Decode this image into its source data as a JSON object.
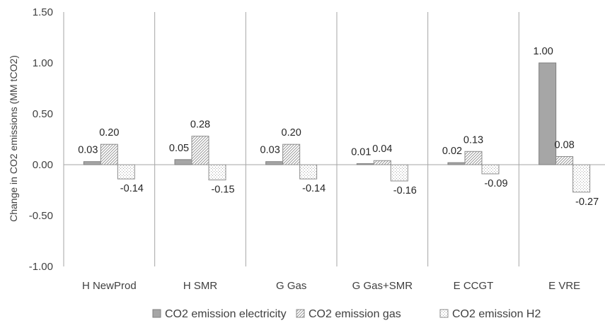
{
  "chart_data": {
    "type": "bar",
    "title": "",
    "xlabel": "",
    "ylabel": "Change in CO2 emissions  (MM tCO2)",
    "ylim": [
      -1.0,
      1.5
    ],
    "yticks": [
      "1.50",
      "1.00",
      "0.50",
      "0.00",
      "-0.50",
      "-1.00"
    ],
    "ytick_values": [
      1.5,
      1.0,
      0.5,
      0.0,
      -0.5,
      -1.0
    ],
    "categories": [
      "H NewProd",
      "H SMR",
      "G Gas",
      "G Gas+SMR",
      "E CCGT",
      "E VRE"
    ],
    "series": [
      {
        "name": "CO2 emission electricity",
        "values": [
          0.03,
          0.05,
          0.03,
          0.01,
          0.02,
          1.0
        ],
        "labels": [
          "0.03",
          "0.05",
          "0.03",
          "0.01",
          "0.02",
          "1.00"
        ],
        "fill": "solid-gray",
        "color": "#a6a6a6"
      },
      {
        "name": "CO2 emission gas",
        "values": [
          0.2,
          0.28,
          0.2,
          0.04,
          0.13,
          0.08
        ],
        "labels": [
          "0.20",
          "0.28",
          "0.20",
          "0.04",
          "0.13",
          "0.08"
        ],
        "fill": "diagonal-hatch",
        "color": "#bfbfbf"
      },
      {
        "name": "CO2 emission H2",
        "values": [
          -0.14,
          -0.15,
          -0.14,
          -0.16,
          -0.09,
          -0.27
        ],
        "labels": [
          "-0.14",
          "-0.15",
          "-0.14",
          "-0.16",
          "-0.09",
          "-0.27"
        ],
        "fill": "dotted",
        "color": "#bfbfbf"
      }
    ],
    "grid": false,
    "category_separators": true,
    "legend": "bottom"
  }
}
